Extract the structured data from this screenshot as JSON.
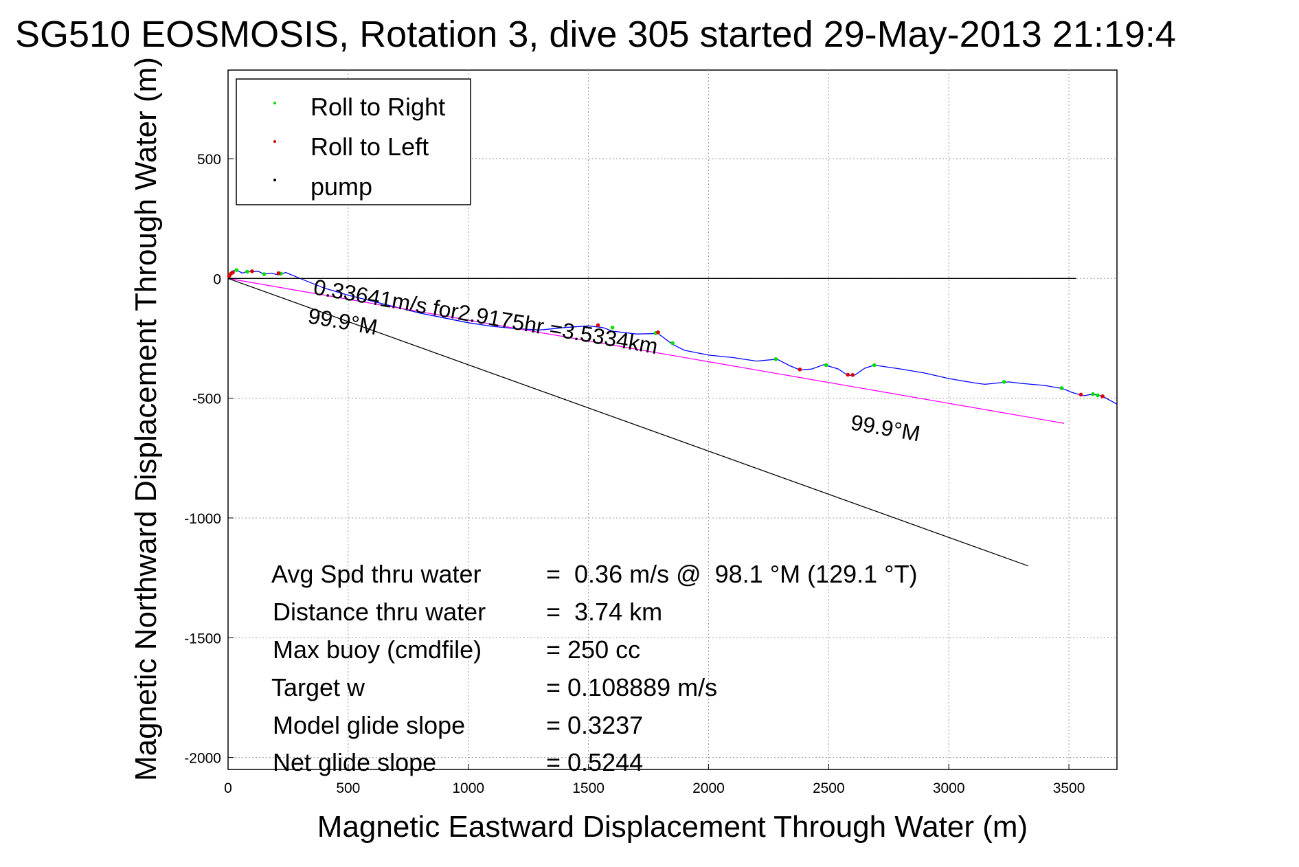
{
  "chart_data": {
    "type": "line",
    "title": "SG510 EOSMOSIS, Rotation 3, dive 305 started 29-May-2013 21:19:4",
    "xlabel": "Magnetic Eastward Displacement Through Water (m)",
    "ylabel": "Magnetic Northward Displacement Through Water (m)",
    "xlim": [
      0,
      3700
    ],
    "ylim": [
      -2050,
      870
    ],
    "xticks": [
      0,
      500,
      1000,
      1500,
      2000,
      2500,
      3000,
      3500
    ],
    "yticks": [
      -2000,
      -1500,
      -1000,
      -500,
      0,
      500
    ],
    "grid": true,
    "legend": {
      "placement": "top-left",
      "entries": [
        {
          "label": "Roll to Right",
          "color": "#00dd00"
        },
        {
          "label": "Roll to Left",
          "color": "#dd0000"
        },
        {
          "label": "pump",
          "color": "#000000"
        }
      ]
    },
    "series": [
      {
        "name": "track",
        "color": "#0000ff",
        "x": [
          0,
          15,
          35,
          60,
          80,
          100,
          125,
          150,
          180,
          210,
          240,
          300,
          400,
          500,
          600,
          700,
          800,
          900,
          1000,
          1100,
          1200,
          1300,
          1400,
          1500,
          1560,
          1600,
          1700,
          1790,
          1850,
          1900,
          2000,
          2100,
          2200,
          2285,
          2340,
          2380,
          2430,
          2480,
          2540,
          2580,
          2610,
          2650,
          2690,
          2800,
          2900,
          3000,
          3100,
          3150,
          3250,
          3300,
          3400,
          3475,
          3510,
          3560,
          3600,
          3640,
          3700
        ],
        "y": [
          5,
          30,
          35,
          22,
          30,
          28,
          30,
          18,
          22,
          15,
          25,
          0,
          -40,
          -70,
          -95,
          -120,
          -145,
          -165,
          -185,
          -200,
          -210,
          -215,
          -205,
          -198,
          -205,
          -220,
          -232,
          -230,
          -275,
          -300,
          -320,
          -330,
          -345,
          -337,
          -365,
          -382,
          -378,
          -360,
          -378,
          -405,
          -403,
          -375,
          -362,
          -378,
          -395,
          -418,
          -435,
          -442,
          -432,
          -438,
          -447,
          -460,
          -475,
          -490,
          -483,
          -492,
          -525
        ]
      },
      {
        "name": "heading line 1",
        "color": "#ff00ff",
        "x": [
          0,
          3480
        ],
        "y": [
          0,
          -605
        ]
      },
      {
        "name": "heading line 2",
        "color": "#000000",
        "x": [
          0,
          3330
        ],
        "y": [
          0,
          -1200
        ]
      },
      {
        "name": "surface line",
        "color": "#000000",
        "x": [
          0,
          3530
        ],
        "y": [
          0,
          0
        ]
      }
    ],
    "markers": {
      "roll_right": {
        "color": "#00dd00",
        "x": [
          35,
          80,
          150,
          220,
          1600,
          1780,
          1850,
          2280,
          2490,
          2690,
          3230,
          3470,
          3600,
          3620
        ],
        "y": [
          35,
          28,
          18,
          20,
          -205,
          -228,
          -270,
          -337,
          -362,
          -362,
          -432,
          -458,
          -483,
          -488
        ]
      },
      "roll_left": {
        "color": "#dd0000",
        "x": [
          5,
          12,
          20,
          100,
          210,
          1540,
          1790,
          2380,
          2580,
          2600,
          3550,
          3640
        ],
        "y": [
          10,
          20,
          25,
          30,
          22,
          -195,
          -225,
          -380,
          -402,
          -403,
          -485,
          -492
        ]
      }
    },
    "annotations": {
      "speed_label": "0.33641m/s for2.9175hr =3.5334km",
      "heading_label_1": "99.9°M",
      "heading_label_2": "99.9°M"
    },
    "stats": [
      {
        "label": "Avg Spd thru water",
        "value": "=  0.36 m/s @  98.1 °M (129.1 °T)"
      },
      {
        "label": "Distance thru water",
        "value": "=  3.74 km"
      },
      {
        "label": "Max buoy (cmdfile)",
        "value": "= 250 cc"
      },
      {
        "label": "Target w",
        "value": "= 0.108889 m/s"
      },
      {
        "label": "Model glide slope",
        "value": "= 0.3237"
      },
      {
        "label": "Net glide slope",
        "value": "= 0.5244"
      }
    ]
  }
}
